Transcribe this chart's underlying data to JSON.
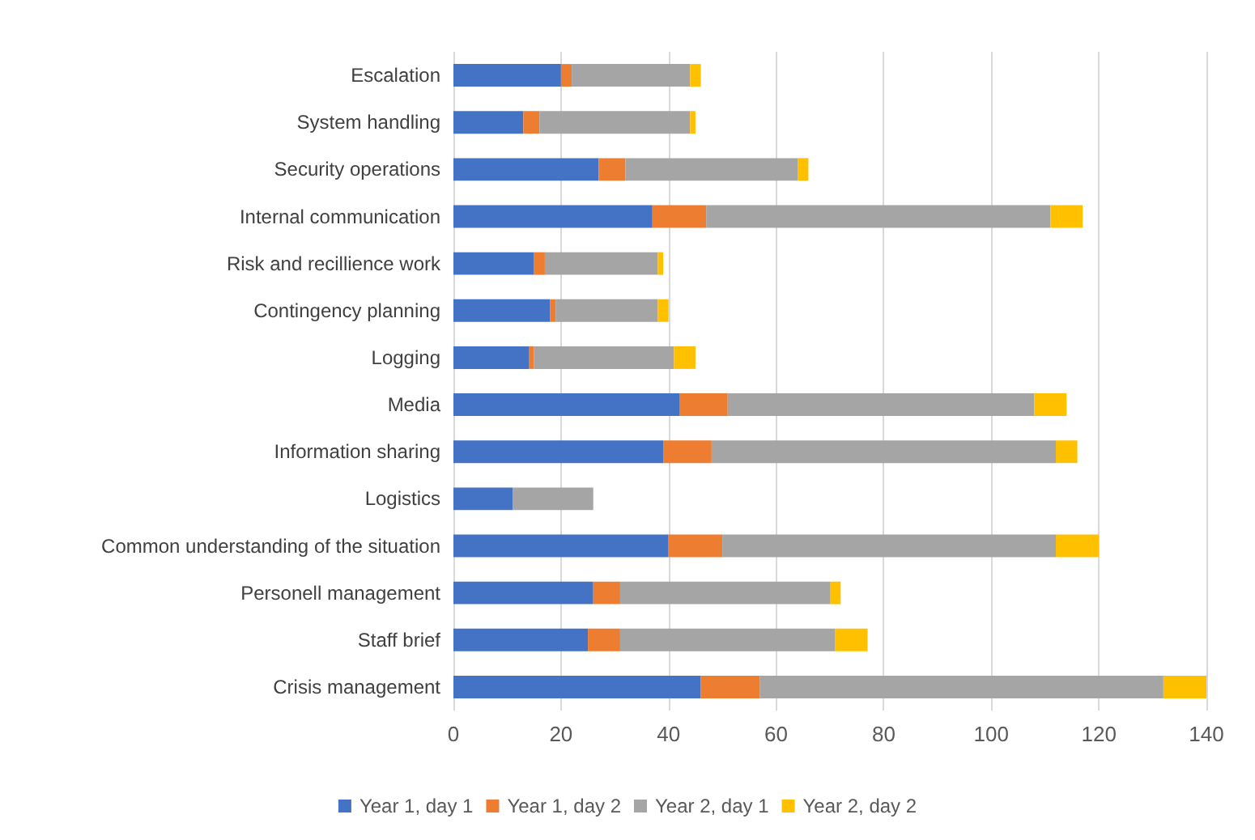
{
  "chart_data": {
    "type": "bar",
    "orientation": "horizontal",
    "stacked": true,
    "categories": [
      "Escalation",
      "System handling",
      "Security operations",
      "Internal communication",
      "Risk and recillience work",
      "Contingency planning",
      "Logging",
      "Media",
      "Information sharing",
      "Logistics",
      "Common understanding of the situation",
      "Personell management",
      "Staff brief",
      "Crisis management"
    ],
    "series": [
      {
        "name": "Year 1, day 1",
        "color": "#4472c4",
        "values": [
          20,
          13,
          27,
          37,
          15,
          18,
          14,
          42,
          39,
          11,
          40,
          26,
          25,
          46
        ]
      },
      {
        "name": "Year 1, day 2",
        "color": "#ed7d31",
        "values": [
          2,
          3,
          5,
          10,
          2,
          1,
          1,
          9,
          9,
          0,
          10,
          5,
          6,
          11
        ]
      },
      {
        "name": "Year 2, day 1",
        "color": "#a5a5a5",
        "values": [
          22,
          28,
          32,
          64,
          21,
          19,
          26,
          57,
          64,
          15,
          62,
          39,
          40,
          75
        ]
      },
      {
        "name": "Year 2, day 2",
        "color": "#ffc000",
        "values": [
          2,
          1,
          2,
          6,
          1,
          2,
          4,
          6,
          4,
          0,
          8,
          2,
          6,
          8
        ]
      }
    ],
    "xlim": [
      0,
      140
    ],
    "xticks": [
      0,
      20,
      40,
      60,
      80,
      100,
      120,
      140
    ],
    "grid": "x",
    "legend": "bottom"
  }
}
